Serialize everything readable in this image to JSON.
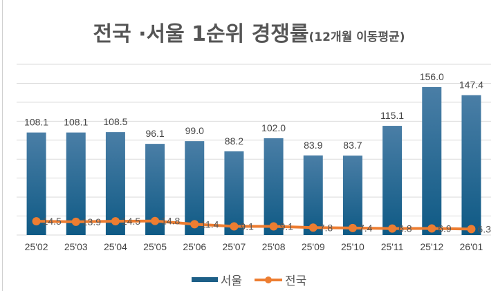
{
  "title": {
    "main": "전국 ·서울 1순위 경쟁률",
    "sub": "(12개월 이동평균)"
  },
  "chart_data": {
    "type": "bar+line",
    "title": "전국 ·서울 1순위 경쟁률(12개월 이동평균)",
    "categories": [
      "25'02",
      "25'03",
      "25'04",
      "25'05",
      "25'06",
      "25'07",
      "25'08",
      "25'09",
      "25'10",
      "25'11",
      "25'12",
      "26'01"
    ],
    "series": [
      {
        "name": "서울",
        "type": "bar",
        "color": "#1d5f87",
        "values": [
          108.1,
          108.1,
          108.5,
          96.1,
          99.0,
          88.2,
          102.0,
          83.9,
          83.7,
          115.1,
          156.0,
          147.4
        ]
      },
      {
        "name": "전국",
        "type": "line",
        "color": "#ed7d31",
        "values": [
          14.5,
          13.9,
          14.5,
          14.8,
          11.4,
          9.1,
          9.1,
          7.8,
          7.4,
          6.8,
          6.9,
          6.3
        ]
      }
    ],
    "ylim": [
      0,
      180
    ],
    "grid": true,
    "legend": "bottom"
  }
}
